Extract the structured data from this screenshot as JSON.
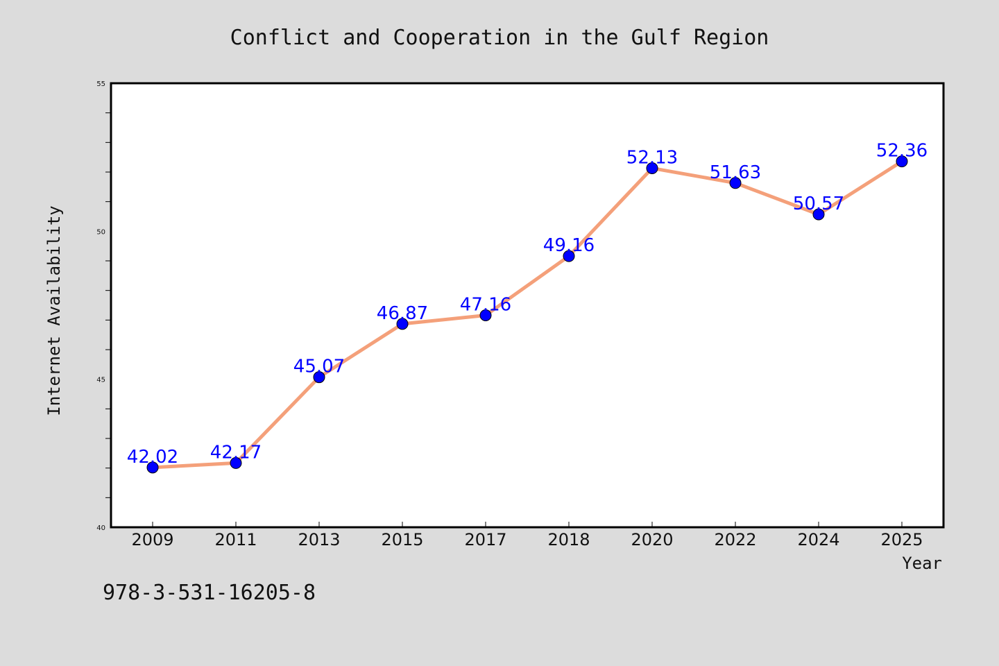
{
  "chart_data": {
    "type": "line",
    "title": "Conflict and Cooperation in the Gulf Region",
    "xlabel": "Year",
    "ylabel": "Internet Availability",
    "categories": [
      "2009",
      "2011",
      "2013",
      "2015",
      "2017",
      "2018",
      "2020",
      "2022",
      "2024",
      "2025"
    ],
    "series": [
      {
        "values": [
          42.02,
          42.17,
          45.07,
          46.87,
          47.16,
          49.16,
          52.13,
          51.63,
          50.57,
          52.36
        ],
        "line_color": "#f4a07a",
        "marker_color": "#0000ff",
        "label_color": "#0000ff"
      }
    ],
    "data_labels": [
      "42.02",
      "42.17",
      "45.07",
      "46.87",
      "47.16",
      "49.16",
      "52.13",
      "51.63",
      "50.57",
      "52.36"
    ],
    "ylim": [
      40,
      55
    ],
    "yticks": [
      "40",
      "45",
      "50",
      "55"
    ],
    "grid": false,
    "legend": "none"
  },
  "footer": {
    "isbn": "978-3-531-16205-8"
  },
  "colors": {
    "background": "#dcdcdc",
    "plot_background": "#ffffff"
  }
}
